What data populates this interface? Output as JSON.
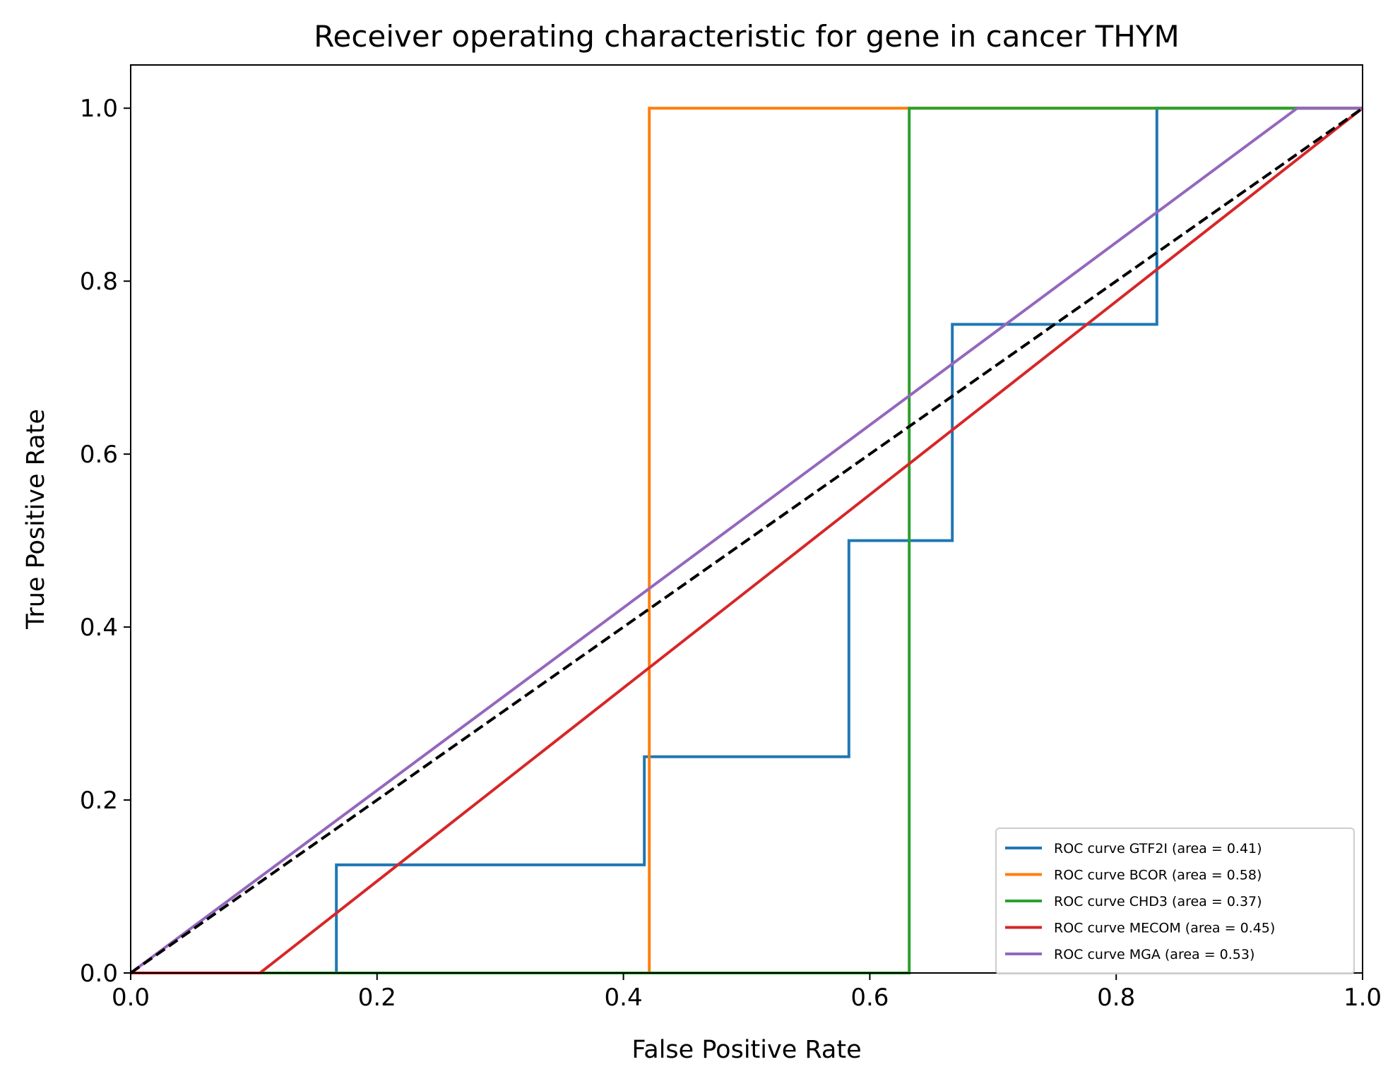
{
  "chart_data": {
    "type": "line",
    "title": "Receiver operating characteristic for gene in cancer THYM",
    "xlabel": "False Positive Rate",
    "ylabel": "True Positive Rate",
    "xlim": [
      0.0,
      1.0
    ],
    "ylim": [
      0.0,
      1.05
    ],
    "xticks": [
      0.0,
      0.2,
      0.4,
      0.6,
      0.8,
      1.0
    ],
    "yticks": [
      0.0,
      0.2,
      0.4,
      0.6,
      0.8,
      1.0
    ],
    "xtick_labels": [
      "0.0",
      "0.2",
      "0.4",
      "0.6",
      "0.8",
      "1.0"
    ],
    "ytick_labels": [
      "0.0",
      "0.2",
      "0.4",
      "0.6",
      "0.8",
      "1.0"
    ],
    "grid": false,
    "legend_position": "lower-right",
    "reference_line": {
      "x": [
        0,
        1
      ],
      "y": [
        0,
        1
      ],
      "color": "#000000",
      "style": "dashed"
    },
    "series": [
      {
        "name": "ROC curve GTF2I (area = 0.41)",
        "color": "#1f77b4",
        "x": [
          0,
          0.167,
          0.167,
          0.417,
          0.417,
          0.583,
          0.583,
          0.667,
          0.667,
          0.833,
          0.833,
          1.0
        ],
        "y": [
          0,
          0,
          0.125,
          0.125,
          0.25,
          0.25,
          0.5,
          0.5,
          0.75,
          0.75,
          1.0,
          1.0
        ]
      },
      {
        "name": "ROC curve BCOR (area = 0.58)",
        "color": "#ff7f0e",
        "x": [
          0,
          0.421,
          0.421,
          1.0
        ],
        "y": [
          0,
          0,
          1.0,
          1.0
        ]
      },
      {
        "name": "ROC curve CHD3 (area = 0.37)",
        "color": "#2ca02c",
        "x": [
          0,
          0.632,
          0.632,
          1.0
        ],
        "y": [
          0,
          0,
          1.0,
          1.0
        ]
      },
      {
        "name": "ROC curve MECOM (area = 0.45)",
        "color": "#d62728",
        "x": [
          0,
          0.105,
          1.0
        ],
        "y": [
          0,
          0,
          1.0
        ]
      },
      {
        "name": "ROC curve MGA (area = 0.53)",
        "color": "#9467bd",
        "x": [
          0,
          0.947,
          1.0
        ],
        "y": [
          0,
          1.0,
          1.0
        ]
      }
    ]
  }
}
